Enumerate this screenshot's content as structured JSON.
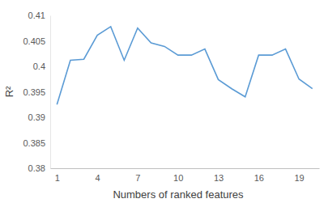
{
  "chart_data": {
    "type": "line",
    "x_label": "Numbers of ranked features",
    "y_label": "R²",
    "categories": [
      "1",
      null,
      null,
      "4",
      null,
      null,
      "7",
      null,
      null,
      "10",
      null,
      null,
      "13",
      null,
      null,
      "16",
      null,
      null,
      "19",
      null
    ],
    "values": [
      0.3925,
      0.4012,
      0.4014,
      0.4061,
      0.4078,
      0.4012,
      0.4075,
      0.4046,
      0.4039,
      0.4022,
      0.4022,
      0.4034,
      0.3974,
      0.3956,
      0.394,
      0.4022,
      0.4022,
      0.4034,
      0.3975,
      0.3956
    ],
    "color": "#5b9bd5",
    "ylim": [
      0.38,
      0.41
    ],
    "yticks": [
      0.38,
      0.385,
      0.39,
      0.395,
      0.4,
      0.405,
      0.41
    ],
    "grid": false
  }
}
